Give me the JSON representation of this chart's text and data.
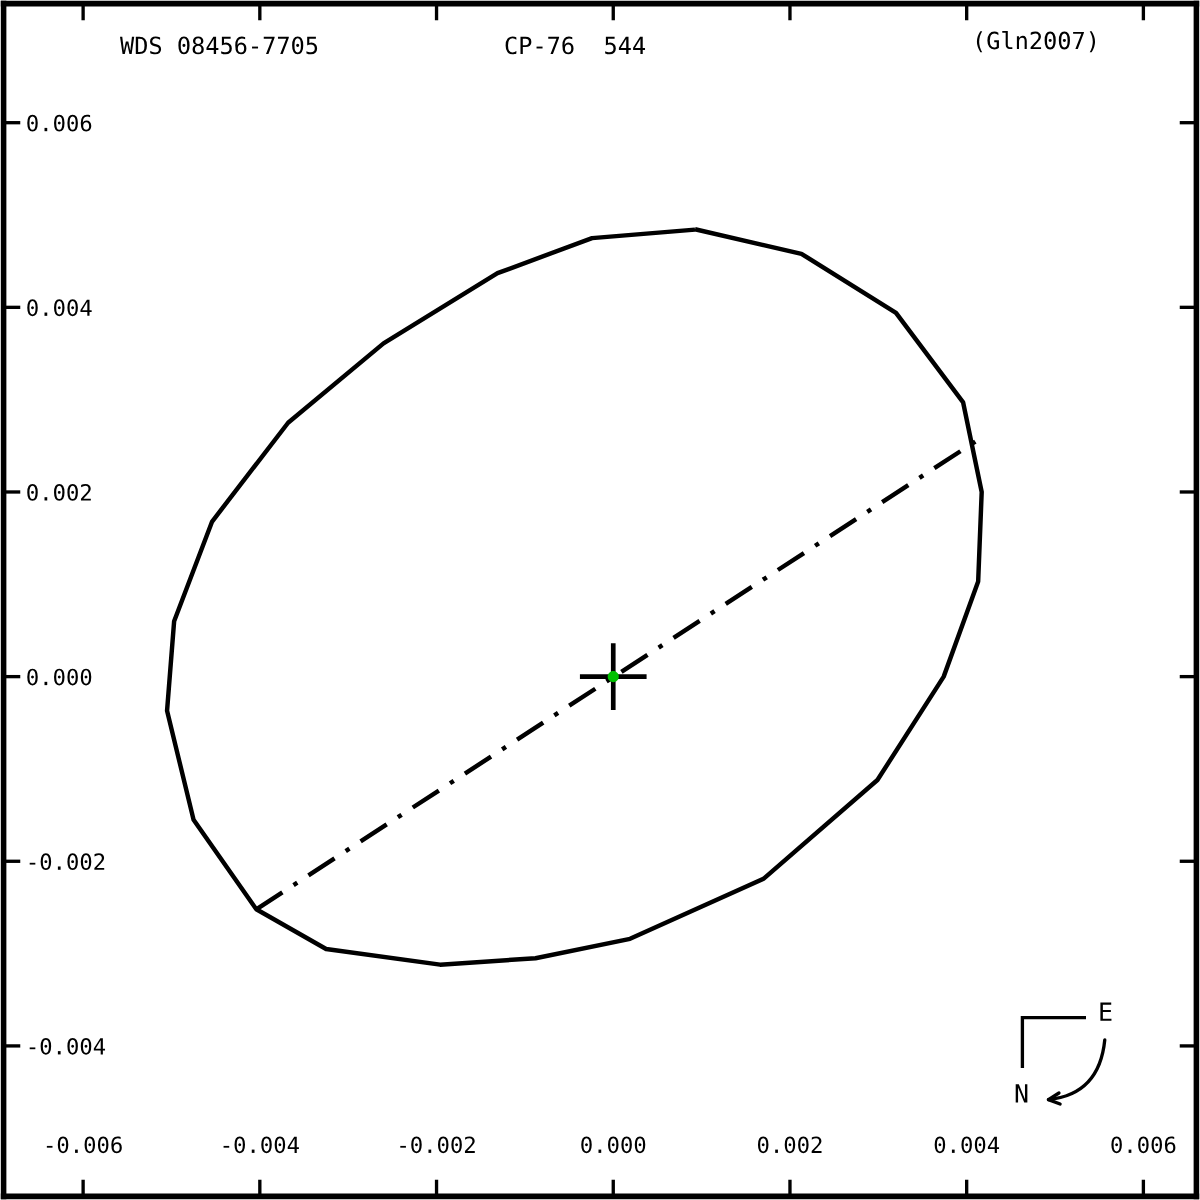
{
  "chart_data": {
    "type": "line",
    "title": "WDS 08456-7705",
    "subtitle": "CP-76  544",
    "annotations": [
      "(Gln2007)",
      "N",
      "E"
    ],
    "xlim": [
      -0.0069,
      0.0066
    ],
    "ylim": [
      -0.00563,
      0.00729
    ],
    "xticks": [
      {
        "value": -0.006,
        "label": "-0.006"
      },
      {
        "value": -0.004,
        "label": "-0.004"
      },
      {
        "value": -0.002,
        "label": "-0.002"
      },
      {
        "value": 0,
        "label": "0.000"
      },
      {
        "value": 0.002,
        "label": "0.002"
      },
      {
        "value": 0.004,
        "label": "0.004"
      },
      {
        "value": 0.006,
        "label": "0.006"
      }
    ],
    "yticks": [
      {
        "value": -0.004,
        "label": "-0.004"
      },
      {
        "value": -0.002,
        "label": "-0.002"
      },
      {
        "value": 0,
        "label": "0.000"
      },
      {
        "value": 0.002,
        "label": "0.002"
      },
      {
        "value": 0.004,
        "label": "0.004"
      },
      {
        "value": 0.006,
        "label": "0.006"
      }
    ],
    "grid": false,
    "legend": false,
    "series": [
      {
        "color": "#000000",
        "marker": "none",
        "line_style": "solid",
        "x": [
          0.00095,
          0.00213,
          0.0032,
          0.00396,
          0.00417,
          0.00413,
          0.00374,
          0.00299,
          0.0017,
          0.00019,
          -0.00088,
          -0.00196,
          -0.00325,
          -0.00404,
          -0.00475,
          -0.00505,
          -0.00497,
          -0.00454,
          -0.00368,
          -0.0026,
          -0.00131,
          -0.00024,
          0.0009
        ],
        "values": [
          0.00484,
          0.00458,
          0.00394,
          0.00297,
          0.002,
          0.00103,
          0.0,
          -0.00112,
          -0.00219,
          -0.00284,
          -0.00305,
          -0.00312,
          -0.00295,
          -0.00252,
          -0.00155,
          -0.00037,
          0.0006,
          0.00168,
          0.00275,
          0.00361,
          0.00437,
          0.00475,
          0.00484
        ]
      },
      {
        "color": "#000000",
        "marker": "none",
        "line_style": "dashed",
        "x": [
          -0.00404,
          0.00412
        ],
        "values": [
          -0.00252,
          0.00256
        ]
      },
      {
        "type": "scatter",
        "color": "#000000",
        "marker": "cross",
        "x": [
          0
        ],
        "values": [
          0
        ]
      },
      {
        "type": "scatter",
        "color": "#00c000",
        "marker": "circle",
        "x": [
          0.0
        ],
        "values": [
          0.0
        ]
      }
    ]
  }
}
